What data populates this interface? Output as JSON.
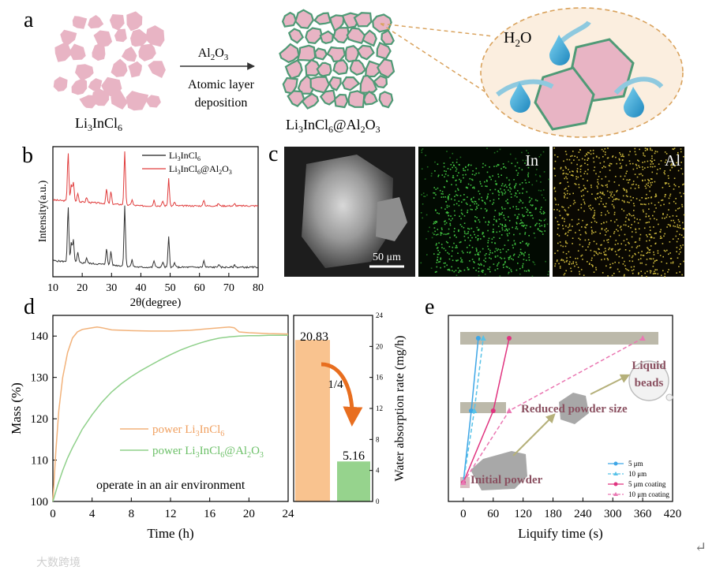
{
  "panel_labels": {
    "a": "a",
    "b": "b",
    "c": "c",
    "d": "d",
    "e": "e"
  },
  "panel_a": {
    "left_label_base": "Li",
    "left_label_sub1": "3",
    "left_label_mid": "InCl",
    "left_label_sub2": "6",
    "arrow_top": "Al",
    "arrow_top_sub": "2",
    "arrow_top_end": "O",
    "arrow_top_sub2": "3",
    "arrow_line1": "Atomic layer",
    "arrow_line2": "deposition",
    "right_label_base": "Li",
    "right_label_sub1": "3",
    "right_label_mid": "InCl",
    "right_label_sub2": "6",
    "right_label_at": "@Al",
    "right_label_sub3": "2",
    "right_label_o": "O",
    "right_label_sub4": "3",
    "water_base": "H",
    "water_sub": "2",
    "water_end": "O",
    "colors": {
      "particle": "#e8b4c4",
      "coating": "#4f9a76",
      "bubble": "#fbeedf",
      "dashed": "#d9a25c",
      "drop": "#2f9fd0",
      "arrow": "#8ec9df"
    }
  },
  "panel_b": {
    "ylabel": "Intensity(a.u.)",
    "xlabel": "2θ(degree)",
    "legend": [
      {
        "base": "Li",
        "sub1": "3",
        "mid": "InCl",
        "sub2": "6",
        "color": "#222222"
      },
      {
        "base": "Li",
        "sub1": "3",
        "mid": "InCl",
        "sub2": "6",
        "tail": "@Al",
        "sub3": "2",
        "tail2": "O",
        "sub4": "3",
        "color": "#e03c3c"
      }
    ],
    "xticks": [
      "10",
      "20",
      "30",
      "40",
      "50",
      "60",
      "70",
      "80"
    ]
  },
  "panel_c": {
    "scale_bar": "50 μm",
    "map1": "In",
    "map2": "Al"
  },
  "chart_data": [
    {
      "type": "line",
      "panel": "d",
      "xlabel": "Time (h)",
      "ylabel": "Mass (%)",
      "y2label": "Water absorption rate (mg/h)",
      "xlim": [
        0,
        24
      ],
      "ylim": [
        100,
        145
      ],
      "y2lim": [
        0,
        24
      ],
      "xticks": [
        "0",
        "4",
        "8",
        "12",
        "16",
        "20",
        "24"
      ],
      "yticks": [
        "100",
        "110",
        "120",
        "130",
        "140"
      ],
      "y2ticks": [
        "0",
        "4",
        "8",
        "12",
        "16",
        "20",
        "24"
      ],
      "series": [
        {
          "name_base": "power Li",
          "name_sub": "3",
          "name_mid": "InCl",
          "name_sub2": "6",
          "color": "#f2b27a",
          "x": [
            0,
            0.3,
            0.6,
            1.0,
            1.5,
            2.0,
            2.5,
            3.0,
            3.5,
            4.0,
            4.5,
            5.0,
            6,
            8,
            10,
            12,
            14,
            16,
            17,
            18,
            18.5,
            19,
            20,
            22,
            24
          ],
          "y": [
            100,
            112,
            122,
            130,
            136,
            139.5,
            141,
            141.6,
            141.8,
            142,
            142.2,
            142,
            141.5,
            141.3,
            141.2,
            141.2,
            141.4,
            141.8,
            142,
            142.2,
            142,
            141,
            140.8,
            140.6,
            140.5
          ]
        },
        {
          "name_base": "power Li",
          "name_sub": "3",
          "name_mid": "InCl",
          "name_sub2": "6",
          "name_tail": "@Al",
          "name_sub3": "2",
          "name_tail2": "O",
          "name_sub4": "3",
          "color": "#8fd08a",
          "x": [
            0,
            0.5,
            1,
            1.5,
            2,
            3,
            4,
            5,
            6,
            7,
            8,
            9,
            10,
            11,
            12,
            13,
            14,
            15,
            16,
            17,
            18,
            19,
            20,
            21,
            22,
            23,
            24
          ],
          "y": [
            100,
            104,
            107.5,
            110.5,
            113,
            117.5,
            121,
            124,
            126.5,
            128.5,
            130.2,
            131.7,
            133,
            134.3,
            135.5,
            136.6,
            137.5,
            138.3,
            139,
            139.5,
            139.8,
            140,
            140.1,
            140.1,
            140.2,
            140.2,
            140.2
          ]
        }
      ],
      "bars": [
        {
          "value": 20.83,
          "label": "20.83",
          "color": "#f9c38f"
        },
        {
          "value": 5.16,
          "label": "5.16",
          "color": "#96d38d"
        }
      ],
      "ratio_label": "1/4",
      "annotation": "operate in an air environment"
    },
    {
      "type": "line",
      "panel": "e",
      "xlabel": "Liquify time (s)",
      "xlim": [
        -30,
        420
      ],
      "xticks": [
        "0",
        "60",
        "120",
        "180",
        "240",
        "300",
        "360",
        "420"
      ],
      "series": [
        {
          "name": "5 μm",
          "color": "#3ea6e6",
          "style": "solid",
          "marker": "circle",
          "x": [
            0,
            16,
            30
          ],
          "y": [
            0,
            0.3,
            1
          ]
        },
        {
          "name": "10 μm",
          "color": "#57c2e8",
          "style": "dashed",
          "marker": "triangle",
          "x": [
            0,
            22,
            40
          ],
          "y": [
            0,
            0.3,
            1
          ]
        },
        {
          "name": "5 μm coating",
          "color": "#e0337f",
          "style": "solid",
          "marker": "circle",
          "x": [
            0,
            60,
            92
          ],
          "y": [
            0,
            0.3,
            1
          ]
        },
        {
          "name": "10 μm coating",
          "color": "#ea77b2",
          "style": "dashed",
          "marker": "triangle",
          "x": [
            0,
            92,
            360
          ],
          "y": [
            0,
            0.3,
            1
          ]
        }
      ],
      "annotations": [
        {
          "text": "Initial powder"
        },
        {
          "text": "Reduced powder size"
        },
        {
          "line1": "Liquid",
          "line2": "beads"
        }
      ]
    }
  ],
  "watermark": "大数跨境"
}
